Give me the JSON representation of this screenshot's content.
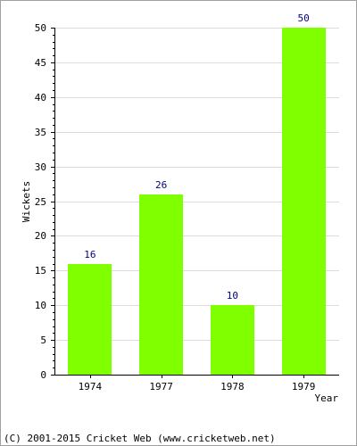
{
  "chart_data": {
    "type": "bar",
    "categories": [
      "1974",
      "1977",
      "1978",
      "1979"
    ],
    "values": [
      16,
      26,
      10,
      50
    ],
    "data_labels": [
      "16",
      "26",
      "10",
      "50"
    ],
    "title": "",
    "xlabel": "Year",
    "ylabel": "Wickets",
    "ylim": [
      0,
      50
    ],
    "yticks": [
      0,
      5,
      10,
      15,
      20,
      25,
      30,
      35,
      40,
      45,
      50
    ],
    "grid": true,
    "legend": "none",
    "colors": {
      "bar": "#80ff00",
      "data_label": "#000080",
      "axis": "#000000",
      "grid": "#dcdcdc",
      "text": "#000000"
    }
  },
  "footer": {
    "copyright": "(C) 2001-2015 Cricket Web (www.cricketweb.net)"
  }
}
